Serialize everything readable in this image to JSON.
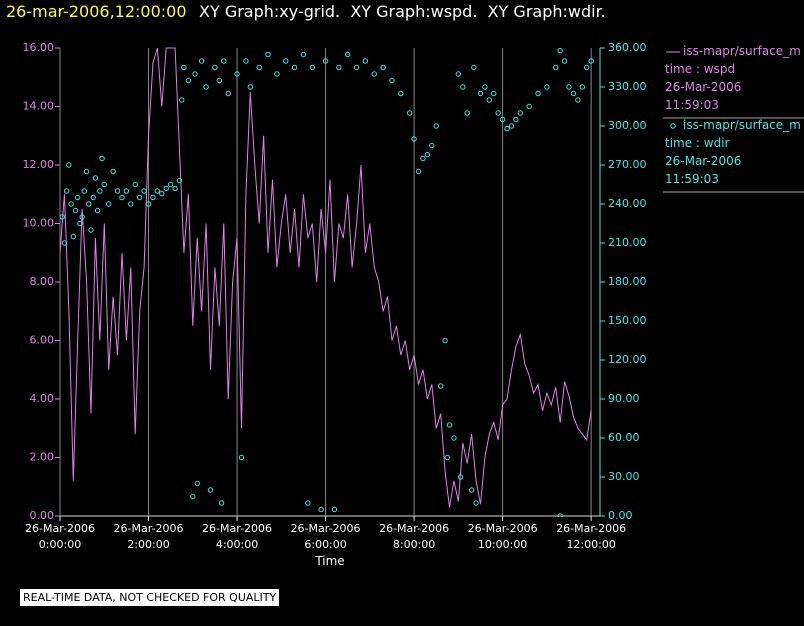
{
  "chart_data": {
    "type": "xy",
    "title": "26-mar-2006,12:00:00",
    "subtitle": "XY Graph:xy-grid.  XY Graph:wspd.  XY Graph:wdir.",
    "xlabel": "Time",
    "note": "REAL-TIME DATA, NOT CHECKED FOR QUALITY",
    "grid": true,
    "xlim": [
      0,
      12.2
    ],
    "xticks": [
      {
        "value": 0,
        "label": "26-Mar-2006\n0:00:00"
      },
      {
        "value": 2,
        "label": "26-Mar-2006\n2:00:00"
      },
      {
        "value": 4,
        "label": "26-Mar-2006\n4:00:00"
      },
      {
        "value": 6,
        "label": "26-Mar-2006\n6:00:00"
      },
      {
        "value": 8,
        "label": "26-Mar-2006\n8:00:00"
      },
      {
        "value": 10,
        "label": "26-Mar-2006\n10:00:00"
      },
      {
        "value": 12,
        "label": "26-Mar-2006\n12:00:00"
      }
    ],
    "ylim": [
      0,
      16
    ],
    "yticks": [
      {
        "value": 0,
        "label": "0.00"
      },
      {
        "value": 2,
        "label": "2.00"
      },
      {
        "value": 4,
        "label": "4.00"
      },
      {
        "value": 6,
        "label": "6.00"
      },
      {
        "value": 8,
        "label": "8.00"
      },
      {
        "value": 10,
        "label": "10.00"
      },
      {
        "value": 12,
        "label": "12.00"
      },
      {
        "value": 14,
        "label": "14.00"
      },
      {
        "value": 16,
        "label": "16.00"
      }
    ],
    "y2lim": [
      0,
      360
    ],
    "y2ticks": [
      {
        "value": 0,
        "label": "0.00"
      },
      {
        "value": 30,
        "label": "30.00"
      },
      {
        "value": 60,
        "label": "60.00"
      },
      {
        "value": 90,
        "label": "90.00"
      },
      {
        "value": 120,
        "label": "120.00"
      },
      {
        "value": 150,
        "label": "150.00"
      },
      {
        "value": 180,
        "label": "180.00"
      },
      {
        "value": 210,
        "label": "210.00"
      },
      {
        "value": 240,
        "label": "240.00"
      },
      {
        "value": 270,
        "label": "270.00"
      },
      {
        "value": 300,
        "label": "300.00"
      },
      {
        "value": 330,
        "label": "330.00"
      },
      {
        "value": 360,
        "label": "360.00"
      }
    ],
    "series": [
      {
        "name": "iss-mapr/surface_m",
        "legend_label": "time : wspd",
        "legend_date": "26-Mar-2006",
        "legend_time": "11:59:03",
        "style": "line",
        "axis": "y",
        "color": "#e080e8",
        "x": [
          0,
          0.1,
          0.2,
          0.3,
          0.4,
          0.5,
          0.6,
          0.7,
          0.8,
          0.9,
          1,
          1.1,
          1.2,
          1.3,
          1.4,
          1.5,
          1.6,
          1.7,
          1.8,
          1.9,
          2,
          2.1,
          2.2,
          2.3,
          2.4,
          2.5,
          2.6,
          2.7,
          2.8,
          2.9,
          3,
          3.1,
          3.2,
          3.3,
          3.4,
          3.5,
          3.6,
          3.7,
          3.8,
          3.9,
          4,
          4.1,
          4.2,
          4.3,
          4.4,
          4.5,
          4.6,
          4.7,
          4.8,
          4.9,
          5,
          5.1,
          5.2,
          5.3,
          5.4,
          5.5,
          5.6,
          5.7,
          5.8,
          5.9,
          6,
          6.1,
          6.2,
          6.3,
          6.4,
          6.5,
          6.6,
          6.7,
          6.8,
          6.9,
          7,
          7.1,
          7.2,
          7.3,
          7.4,
          7.5,
          7.6,
          7.7,
          7.8,
          7.9,
          8,
          8.1,
          8.2,
          8.3,
          8.4,
          8.5,
          8.6,
          8.7,
          8.8,
          8.9,
          9,
          9.1,
          9.2,
          9.3,
          9.4,
          9.5,
          9.6,
          9.7,
          9.8,
          9.9,
          10,
          10.1,
          10.2,
          10.3,
          10.4,
          10.5,
          10.6,
          10.7,
          10.8,
          10.9,
          11,
          11.1,
          11.2,
          11.3,
          11.4,
          11.5,
          11.6,
          11.7,
          11.8,
          11.9,
          12
        ],
        "values": [
          9,
          11,
          7,
          1.2,
          6,
          10.5,
          8,
          3.5,
          9.5,
          6,
          10,
          5,
          7.5,
          5.5,
          9,
          6,
          8.5,
          2.8,
          7,
          8.5,
          13,
          15.5,
          16,
          14,
          16,
          16,
          16,
          12.5,
          9,
          11,
          6.5,
          9.5,
          7,
          10,
          5,
          8.5,
          6.5,
          10,
          4,
          8,
          9.5,
          3,
          11,
          14.5,
          12,
          10,
          13,
          9,
          11.5,
          8.5,
          10,
          11,
          9,
          10.5,
          8.5,
          11,
          9.5,
          10,
          8,
          10.5,
          9,
          11.5,
          8,
          10,
          9.5,
          11,
          8.5,
          10,
          12,
          9,
          10,
          8.5,
          8,
          7,
          7.5,
          6,
          6.5,
          5.5,
          6,
          5,
          5.5,
          4.5,
          5,
          4,
          4.5,
          3,
          3.5,
          1.5,
          0.3,
          1.2,
          0.5,
          2.5,
          1.8,
          2.8,
          1.2,
          0.4,
          2,
          2.8,
          3.2,
          2.6,
          3.8,
          4,
          5,
          5.8,
          6.2,
          5.2,
          4.8,
          4.2,
          4.5,
          3.6,
          4.2,
          3.8,
          4.4,
          3.2,
          4.6,
          4.1,
          3.4,
          3,
          2.8,
          2.6,
          3.6
        ]
      },
      {
        "name": "iss-mapr/surface_m",
        "legend_label": "time : wdir",
        "legend_date": "26-Mar-2006",
        "legend_time": "11:59:03",
        "style": "scatter",
        "axis": "y2",
        "color": "#40e8e8",
        "x": [
          0.05,
          0.1,
          0.15,
          0.2,
          0.25,
          0.3,
          0.35,
          0.4,
          0.45,
          0.5,
          0.55,
          0.6,
          0.65,
          0.7,
          0.75,
          0.8,
          0.85,
          0.9,
          0.95,
          1,
          1.1,
          1.2,
          1.3,
          1.4,
          1.5,
          1.6,
          1.7,
          1.8,
          1.9,
          2,
          2.1,
          2.2,
          2.3,
          2.4,
          2.5,
          2.6,
          2.7,
          2.75,
          2.8,
          2.9,
          3,
          3.05,
          3.1,
          3.2,
          3.3,
          3.4,
          3.5,
          3.6,
          3.65,
          3.7,
          3.8,
          4,
          4.1,
          4.2,
          4.3,
          4.5,
          4.7,
          4.9,
          5.1,
          5.3,
          5.5,
          5.6,
          5.7,
          5.9,
          6,
          6.2,
          6.3,
          6.5,
          6.7,
          6.9,
          7.1,
          7.3,
          7.5,
          7.7,
          7.9,
          8,
          8.1,
          8.2,
          8.3,
          8.4,
          8.5,
          8.6,
          8.7,
          8.75,
          8.8,
          8.9,
          9,
          9.05,
          9.1,
          9.2,
          9.3,
          9.35,
          9.4,
          9.5,
          9.6,
          9.7,
          9.8,
          9.9,
          10,
          10.1,
          10.2,
          10.3,
          10.4,
          10.6,
          10.8,
          11,
          11.2,
          11.3,
          11.3,
          11.4,
          11.5,
          11.6,
          11.7,
          11.8,
          11.9,
          12
        ],
        "values": [
          230,
          210,
          250,
          270,
          240,
          215,
          235,
          245,
          225,
          230,
          250,
          265,
          240,
          220,
          245,
          260,
          235,
          250,
          275,
          255,
          240,
          265,
          250,
          245,
          250,
          240,
          255,
          245,
          250,
          240,
          245,
          250,
          248,
          252,
          255,
          252,
          258,
          320,
          345,
          335,
          15,
          340,
          25,
          350,
          330,
          20,
          345,
          335,
          10,
          350,
          325,
          340,
          45,
          350,
          330,
          345,
          355,
          340,
          350,
          345,
          355,
          10,
          345,
          5,
          350,
          5,
          345,
          355,
          345,
          350,
          340,
          345,
          335,
          325,
          310,
          290,
          265,
          275,
          278,
          285,
          300,
          100,
          135,
          45,
          70,
          60,
          340,
          30,
          330,
          310,
          20,
          345,
          10,
          325,
          330,
          320,
          325,
          310,
          305,
          298,
          300,
          305,
          310,
          315,
          325,
          330,
          345,
          358,
          0,
          350,
          330,
          325,
          320,
          330,
          345,
          350
        ]
      }
    ]
  }
}
